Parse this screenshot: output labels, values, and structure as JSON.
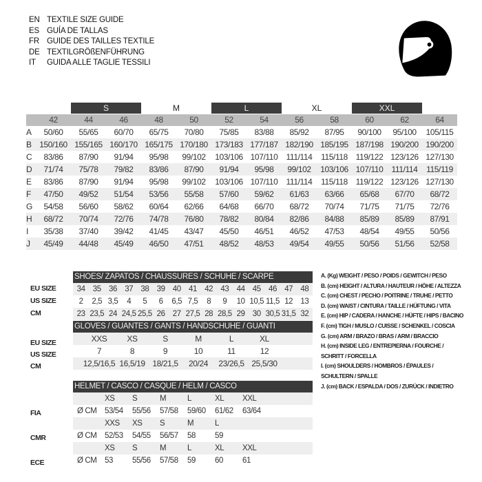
{
  "titles": [
    {
      "code": "EN",
      "text": "TEXTILE SIZE GUIDE"
    },
    {
      "code": "ES",
      "text": "GUÍA DE TALLAS"
    },
    {
      "code": "FR",
      "text": "GUIDE DES TAILLES TEXTILE"
    },
    {
      "code": "DE",
      "text": "TEXTILGRÖßENFÜHRUNG"
    },
    {
      "code": "IT",
      "text": "GUIDA ALLE TAGLIE TESSILI"
    }
  ],
  "icon": "helmet-icon",
  "colors": {
    "dark_header": "#3a3a3a",
    "column_header": "#bdbdbd",
    "alt_row": "#eeeeee"
  },
  "textile": {
    "bands": [
      {
        "label": "S",
        "dark": true
      },
      {
        "label": "M",
        "dark": false
      },
      {
        "label": "L",
        "dark": true
      },
      {
        "label": "XL",
        "dark": false
      },
      {
        "label": "XXL",
        "dark": true
      }
    ],
    "sizes": [
      "42",
      "44",
      "46",
      "48",
      "50",
      "52",
      "54",
      "56",
      "58",
      "60",
      "62",
      "64"
    ],
    "rows": [
      {
        "key": "A",
        "values": [
          "50/60",
          "55/65",
          "60/70",
          "65/75",
          "70/80",
          "75/85",
          "83/88",
          "85/92",
          "87/95",
          "90/100",
          "95/100",
          "105/115"
        ]
      },
      {
        "key": "B",
        "values": [
          "150/160",
          "155/165",
          "160/170",
          "165/175",
          "170/180",
          "173/183",
          "177/187",
          "182/190",
          "185/195",
          "187/198",
          "190/200",
          "190/200"
        ]
      },
      {
        "key": "C",
        "values": [
          "83/86",
          "87/90",
          "91/94",
          "95/98",
          "99/102",
          "103/106",
          "107/110",
          "111/114",
          "115/118",
          "119/122",
          "123/126",
          "127/130"
        ]
      },
      {
        "key": "D",
        "values": [
          "71/74",
          "75/78",
          "79/82",
          "83/86",
          "87/90",
          "91/94",
          "95/98",
          "99/102",
          "103/106",
          "107/110",
          "111/114",
          "115/119"
        ]
      },
      {
        "key": "E",
        "values": [
          "83/86",
          "87/90",
          "91/94",
          "95/98",
          "99/102",
          "103/106",
          "107/110",
          "111/114",
          "115/118",
          "119/122",
          "123/126",
          "127/130"
        ]
      },
      {
        "key": "F",
        "values": [
          "47/50",
          "49/52",
          "51/54",
          "53/56",
          "55/58",
          "57/60",
          "59/62",
          "61/63",
          "63/66",
          "65/68",
          "67/70",
          "68/72"
        ]
      },
      {
        "key": "G",
        "values": [
          "54/58",
          "56/60",
          "58/62",
          "60/64",
          "62/66",
          "64/68",
          "66/70",
          "68/72",
          "70/74",
          "71/75",
          "71/75",
          "72/76"
        ]
      },
      {
        "key": "H",
        "values": [
          "68/72",
          "70/74",
          "72/76",
          "74/78",
          "76/80",
          "78/82",
          "80/84",
          "82/86",
          "84/88",
          "85/89",
          "85/89",
          "87/91"
        ]
      },
      {
        "key": "I",
        "values": [
          "35/38",
          "37/40",
          "39/42",
          "41/45",
          "43/47",
          "45/50",
          "46/51",
          "46/52",
          "47/53",
          "48/54",
          "49/55",
          "50/56"
        ]
      },
      {
        "key": "J",
        "values": [
          "45/49",
          "44/48",
          "45/49",
          "46/50",
          "47/51",
          "48/52",
          "48/53",
          "49/54",
          "49/55",
          "50/56",
          "51/56",
          "52/58"
        ]
      }
    ]
  },
  "shoes": {
    "title": "SHOES/ ZAPATOS / CHAUSSURES / SCHUHE / SCARPE",
    "rows": [
      {
        "label": "EU SIZE",
        "values": [
          "34",
          "35",
          "36",
          "37",
          "38",
          "39",
          "40",
          "41",
          "42",
          "43",
          "44",
          "45",
          "46",
          "47",
          "48"
        ]
      },
      {
        "label": "US SIZE",
        "values": [
          "2",
          "2,5",
          "3,5",
          "4",
          "5",
          "6",
          "6,5",
          "7,5",
          "8",
          "9",
          "10",
          "10,5",
          "11,5",
          "12",
          "13"
        ]
      },
      {
        "label": "CM",
        "values": [
          "23",
          "23,5",
          "24",
          "24,5",
          "25,5",
          "26",
          "27",
          "27,5",
          "28",
          "28,5",
          "29",
          "30",
          "30,5",
          "31,5",
          "32"
        ]
      }
    ]
  },
  "gloves": {
    "title": "GLOVES / GUANTES / GANTS / HANDSCHUHE / GUANTI",
    "rows": [
      {
        "label": "EU SIZE",
        "values": [
          "XXS",
          "XS",
          "S",
          "M",
          "L",
          "XL"
        ]
      },
      {
        "label": "US SIZE",
        "values": [
          "7",
          "8",
          "9",
          "10",
          "11",
          "12"
        ]
      },
      {
        "label": "CM",
        "values": [
          "12,5/16,5",
          "16,5/19",
          "18/21,5",
          "20/24",
          "23/26,5",
          "25,5/30"
        ]
      }
    ]
  },
  "helmet": {
    "title": "HELMET / CASCO / CASQUE / HELM / CASCO",
    "groups": [
      {
        "label": "FIA",
        "unit": "Ø CM",
        "sizes": [
          "XS",
          "S",
          "M",
          "L",
          "XL",
          "XXL"
        ],
        "values": [
          "53/54",
          "55/56",
          "57/58",
          "59/60",
          "61/62",
          "63/64"
        ]
      },
      {
        "label": "CMR",
        "unit": "Ø CM",
        "sizes": [
          "XXS",
          "XS",
          "S",
          "M",
          "L"
        ],
        "values": [
          "52/53",
          "54/55",
          "56/57",
          "58",
          "59"
        ]
      },
      {
        "label": "ECE",
        "unit": "Ø CM",
        "sizes": [
          "XS",
          "S",
          "M",
          "L",
          "XL",
          "XXL"
        ],
        "values": [
          "53",
          "55/56",
          "57/58",
          "59",
          "60",
          "61"
        ]
      }
    ]
  },
  "legend": [
    "A. (Kg) WEIGHT / PESO / POIDS / GEWITCH / PESO",
    "B. (cm) HEIGHT / ALTURA / HAUTEUR / HÖHE / ALTEZZA",
    "C. (cm) CHEST / PECHO / POITRINE / TRUHE / PETTO",
    "D. (cm) WAIST / CINTURA / TAILLE / HÜFTUNG / VITA",
    "E. (cm) HIP / CADERA / HANCHE / HÜFTE / HIPS /  BACINO",
    "F.  (cm) TIGH / MUSLO / CUISSE / SCHENKEL / COSCIA",
    "G. (cm) ARM  / BRAZO / BRAS / ARM / BRACCIO",
    "H. (cm) INSIDE LEG / ENTREPIERNA / FOURCHE /",
    "SCHRITT / FORCELLA",
    "I.  (cm) SHOULDERS / HOMBROS / ÉPAULES /",
    "SCHULTERN / SPALLE",
    "J. (cm) BACK / ESPALDA / DOS / ZURÜCK / INDIETRO"
  ]
}
